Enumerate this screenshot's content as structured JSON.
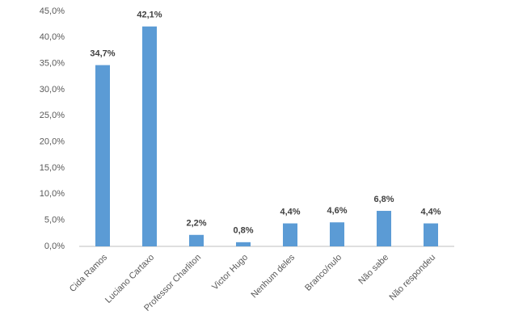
{
  "chart_data": {
    "type": "bar",
    "categories": [
      "Cida Ramos",
      "Luciano Cartaxo",
      "Professor Charliton",
      "Victor Hugo",
      "Nenhum deles",
      "Branco/nulo",
      "Não sabe",
      "Não respondeu"
    ],
    "values": [
      34.7,
      42.1,
      2.2,
      0.8,
      4.4,
      4.6,
      6.8,
      4.4
    ],
    "value_labels": [
      "34,7%",
      "42,1%",
      "2,2%",
      "0,8%",
      "4,4%",
      "4,6%",
      "6,8%",
      "4,4%"
    ],
    "color": "#5b9bd5",
    "ylim": [
      0,
      45
    ],
    "yticks": [
      {
        "value": 0,
        "label": "0,0%"
      },
      {
        "value": 5,
        "label": "5,0%"
      },
      {
        "value": 10,
        "label": "10,0%"
      },
      {
        "value": 15,
        "label": "15,0%"
      },
      {
        "value": 20,
        "label": "20,0%"
      },
      {
        "value": 25,
        "label": "25,0%"
      },
      {
        "value": 30,
        "label": "30,0%"
      },
      {
        "value": 35,
        "label": "35,0%"
      },
      {
        "value": 40,
        "label": "40,0%"
      },
      {
        "value": 45,
        "label": "45,0%"
      }
    ],
    "grid": false
  }
}
